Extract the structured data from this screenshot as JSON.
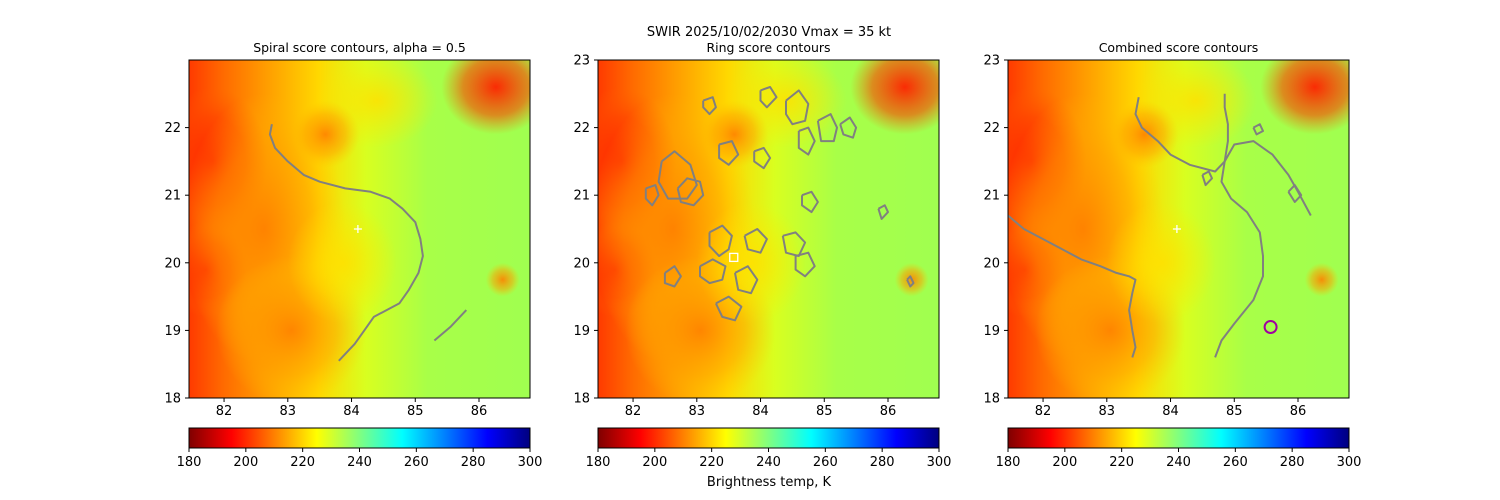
{
  "figure": {
    "suptitle_line": "SWIR  2025/10/02/2030    Vmax = 35 kt",
    "colorbar_label": "Brightness temp, K"
  },
  "colorbar": {
    "range": [
      180,
      300
    ],
    "ticks": [
      180,
      200,
      220,
      240,
      260,
      280,
      300
    ],
    "colormap": "jet_r",
    "stops": [
      "#7f0000",
      "#ff0000",
      "#ff8000",
      "#ffff00",
      "#80ff80",
      "#00ffff",
      "#0080ff",
      "#0000ff",
      "#00007f"
    ]
  },
  "contour_color": "#808080",
  "chart_data": [
    {
      "type": "heatmap",
      "title": "Spiral score contours, alpha =  0.5",
      "xlim": [
        81.45,
        86.8
      ],
      "ylim": [
        18.0,
        23.0
      ],
      "xticks": [
        82,
        83,
        84,
        85,
        86
      ],
      "yticks": [
        18,
        19,
        20,
        21,
        22
      ],
      "grid": false,
      "center_marker": {
        "symbol": "+",
        "color": "#ffffff",
        "x": 84.1,
        "y": 20.5
      },
      "contours": [
        [
          [
            82.75,
            22.05
          ],
          [
            82.72,
            21.9
          ],
          [
            82.8,
            21.7
          ],
          [
            83.0,
            21.5
          ],
          [
            83.25,
            21.3
          ],
          [
            83.5,
            21.2
          ],
          [
            83.9,
            21.1
          ],
          [
            84.3,
            21.05
          ],
          [
            84.6,
            20.95
          ],
          [
            84.8,
            20.8
          ],
          [
            85.0,
            20.6
          ],
          [
            85.08,
            20.35
          ],
          [
            85.12,
            20.1
          ],
          [
            85.05,
            19.85
          ],
          [
            84.9,
            19.6
          ],
          [
            84.75,
            19.4
          ],
          [
            84.55,
            19.3
          ],
          [
            84.35,
            19.2
          ],
          [
            84.2,
            19.0
          ],
          [
            84.05,
            18.8
          ],
          [
            83.95,
            18.7
          ],
          [
            83.8,
            18.55
          ]
        ],
        [
          [
            85.3,
            18.85
          ],
          [
            85.55,
            19.05
          ],
          [
            85.8,
            19.3
          ]
        ]
      ]
    },
    {
      "type": "heatmap",
      "title": "Ring score contours",
      "xlim": [
        81.45,
        86.8
      ],
      "ylim": [
        18.0,
        23.0
      ],
      "xticks": [
        82,
        83,
        84,
        85,
        86
      ],
      "yticks": [
        18,
        19,
        20,
        21,
        22,
        23
      ],
      "grid": false,
      "center_marker": {
        "symbol": "square",
        "color": "#ffffff",
        "x": 83.58,
        "y": 20.08
      },
      "contours": [
        [
          [
            82.45,
            21.5
          ],
          [
            82.65,
            21.65
          ],
          [
            82.9,
            21.45
          ],
          [
            83.0,
            21.15
          ],
          [
            82.85,
            20.95
          ],
          [
            82.55,
            20.95
          ],
          [
            82.4,
            21.2
          ],
          [
            82.45,
            21.5
          ]
        ],
        [
          [
            82.7,
            21.1
          ],
          [
            82.85,
            21.25
          ],
          [
            83.05,
            21.2
          ],
          [
            83.1,
            21.0
          ],
          [
            82.95,
            20.85
          ],
          [
            82.75,
            20.9
          ],
          [
            82.7,
            21.1
          ]
        ],
        [
          [
            83.2,
            20.45
          ],
          [
            83.4,
            20.55
          ],
          [
            83.55,
            20.4
          ],
          [
            83.5,
            20.2
          ],
          [
            83.35,
            20.1
          ],
          [
            83.2,
            20.25
          ],
          [
            83.2,
            20.45
          ]
        ],
        [
          [
            83.05,
            19.95
          ],
          [
            83.25,
            20.05
          ],
          [
            83.45,
            19.95
          ],
          [
            83.4,
            19.75
          ],
          [
            83.2,
            19.7
          ],
          [
            83.05,
            19.8
          ],
          [
            83.05,
            19.95
          ]
        ],
        [
          [
            83.6,
            19.85
          ],
          [
            83.8,
            19.95
          ],
          [
            83.95,
            19.75
          ],
          [
            83.85,
            19.55
          ],
          [
            83.65,
            19.6
          ],
          [
            83.6,
            19.85
          ]
        ],
        [
          [
            83.75,
            20.4
          ],
          [
            83.95,
            20.5
          ],
          [
            84.1,
            20.35
          ],
          [
            84.0,
            20.15
          ],
          [
            83.8,
            20.2
          ],
          [
            83.75,
            20.4
          ]
        ],
        [
          [
            84.35,
            20.4
          ],
          [
            84.55,
            20.45
          ],
          [
            84.7,
            20.3
          ],
          [
            84.6,
            20.1
          ],
          [
            84.4,
            20.15
          ],
          [
            84.35,
            20.4
          ]
        ],
        [
          [
            84.55,
            20.1
          ],
          [
            84.75,
            20.15
          ],
          [
            84.85,
            19.95
          ],
          [
            84.7,
            19.8
          ],
          [
            84.55,
            19.9
          ],
          [
            84.55,
            20.1
          ]
        ],
        [
          [
            83.35,
            21.75
          ],
          [
            83.55,
            21.8
          ],
          [
            83.65,
            21.6
          ],
          [
            83.5,
            21.45
          ],
          [
            83.35,
            21.55
          ],
          [
            83.35,
            21.75
          ]
        ],
        [
          [
            83.9,
            21.65
          ],
          [
            84.05,
            21.7
          ],
          [
            84.15,
            21.55
          ],
          [
            84.05,
            21.4
          ],
          [
            83.9,
            21.5
          ],
          [
            83.9,
            21.65
          ]
        ],
        [
          [
            84.4,
            22.4
          ],
          [
            84.6,
            22.55
          ],
          [
            84.75,
            22.35
          ],
          [
            84.7,
            22.1
          ],
          [
            84.5,
            22.05
          ],
          [
            84.4,
            22.2
          ],
          [
            84.4,
            22.4
          ]
        ],
        [
          [
            84.6,
            21.95
          ],
          [
            84.75,
            22.0
          ],
          [
            84.85,
            21.8
          ],
          [
            84.75,
            21.6
          ],
          [
            84.6,
            21.7
          ],
          [
            84.6,
            21.95
          ]
        ],
        [
          [
            84.9,
            22.1
          ],
          [
            85.1,
            22.2
          ],
          [
            85.2,
            22.0
          ],
          [
            85.15,
            21.8
          ],
          [
            84.95,
            21.8
          ],
          [
            84.9,
            22.1
          ]
        ],
        [
          [
            85.25,
            22.05
          ],
          [
            85.4,
            22.15
          ],
          [
            85.5,
            22.0
          ],
          [
            85.45,
            21.85
          ],
          [
            85.3,
            21.9
          ],
          [
            85.25,
            22.05
          ]
        ],
        [
          [
            84.0,
            22.55
          ],
          [
            84.15,
            22.6
          ],
          [
            84.25,
            22.45
          ],
          [
            84.1,
            22.3
          ],
          [
            84.0,
            22.4
          ],
          [
            84.0,
            22.55
          ]
        ],
        [
          [
            84.65,
            21.0
          ],
          [
            84.8,
            21.05
          ],
          [
            84.9,
            20.9
          ],
          [
            84.8,
            20.75
          ],
          [
            84.65,
            20.85
          ],
          [
            84.65,
            21.0
          ]
        ],
        [
          [
            83.3,
            19.4
          ],
          [
            83.5,
            19.5
          ],
          [
            83.7,
            19.35
          ],
          [
            83.6,
            19.15
          ],
          [
            83.4,
            19.2
          ],
          [
            83.3,
            19.4
          ]
        ],
        [
          [
            82.5,
            19.85
          ],
          [
            82.65,
            19.95
          ],
          [
            82.75,
            19.8
          ],
          [
            82.65,
            19.65
          ],
          [
            82.5,
            19.7
          ],
          [
            82.5,
            19.85
          ]
        ],
        [
          [
            82.2,
            21.1
          ],
          [
            82.35,
            21.15
          ],
          [
            82.4,
            21.0
          ],
          [
            82.3,
            20.85
          ],
          [
            82.2,
            20.95
          ],
          [
            82.2,
            21.1
          ]
        ],
        [
          [
            83.1,
            22.4
          ],
          [
            83.25,
            22.45
          ],
          [
            83.3,
            22.3
          ],
          [
            83.2,
            22.2
          ],
          [
            83.1,
            22.3
          ],
          [
            83.1,
            22.4
          ]
        ],
        [
          [
            85.85,
            20.8
          ],
          [
            85.95,
            20.85
          ],
          [
            86.0,
            20.75
          ],
          [
            85.9,
            20.65
          ],
          [
            85.85,
            20.8
          ]
        ],
        [
          [
            86.3,
            19.75
          ],
          [
            86.35,
            19.8
          ],
          [
            86.4,
            19.7
          ],
          [
            86.35,
            19.65
          ],
          [
            86.3,
            19.75
          ]
        ]
      ]
    },
    {
      "type": "heatmap",
      "title": "Combined score contours",
      "xlim": [
        81.45,
        86.8
      ],
      "ylim": [
        18.0,
        23.0
      ],
      "xticks": [
        82,
        83,
        84,
        85,
        86
      ],
      "yticks": [
        18,
        19,
        20,
        21,
        22,
        23
      ],
      "grid": false,
      "center_marker": {
        "symbol": "+",
        "color": "#ffffff",
        "x": 84.1,
        "y": 20.5
      },
      "target_marker": {
        "symbol": "circle",
        "color": "#a000a0",
        "x": 85.57,
        "y": 19.05
      },
      "contours": [
        [
          [
            81.45,
            20.7
          ],
          [
            81.7,
            20.5
          ],
          [
            82.0,
            20.35
          ],
          [
            82.3,
            20.2
          ],
          [
            82.6,
            20.05
          ],
          [
            82.9,
            19.95
          ],
          [
            83.15,
            19.85
          ],
          [
            83.35,
            19.8
          ],
          [
            83.45,
            19.75
          ],
          [
            83.4,
            19.55
          ],
          [
            83.35,
            19.3
          ],
          [
            83.4,
            19.0
          ],
          [
            83.45,
            18.75
          ],
          [
            83.4,
            18.6
          ]
        ],
        [
          [
            83.5,
            22.45
          ],
          [
            83.45,
            22.2
          ],
          [
            83.55,
            22.0
          ],
          [
            83.8,
            21.8
          ],
          [
            84.0,
            21.6
          ],
          [
            84.3,
            21.45
          ],
          [
            84.7,
            21.35
          ],
          [
            84.85,
            21.5
          ],
          [
            84.9,
            21.8
          ],
          [
            84.9,
            22.05
          ],
          [
            84.85,
            22.3
          ],
          [
            84.85,
            22.5
          ]
        ],
        [
          [
            84.7,
            18.6
          ],
          [
            84.8,
            18.85
          ],
          [
            85.0,
            19.1
          ],
          [
            85.3,
            19.45
          ],
          [
            85.45,
            19.8
          ],
          [
            85.45,
            20.1
          ],
          [
            85.4,
            20.45
          ],
          [
            85.2,
            20.75
          ],
          [
            84.95,
            20.95
          ],
          [
            84.8,
            21.2
          ],
          [
            84.85,
            21.5
          ],
          [
            85.0,
            21.75
          ],
          [
            85.3,
            21.8
          ],
          [
            85.6,
            21.6
          ],
          [
            85.85,
            21.3
          ],
          [
            86.0,
            21.05
          ],
          [
            86.2,
            20.7
          ]
        ],
        [
          [
            85.85,
            21.05
          ],
          [
            85.95,
            21.15
          ],
          [
            86.05,
            21.0
          ],
          [
            85.95,
            20.9
          ],
          [
            85.85,
            21.05
          ]
        ],
        [
          [
            84.5,
            21.3
          ],
          [
            84.6,
            21.35
          ],
          [
            84.65,
            21.25
          ],
          [
            84.55,
            21.15
          ],
          [
            84.5,
            21.3
          ]
        ],
        [
          [
            85.3,
            22.0
          ],
          [
            85.4,
            22.05
          ],
          [
            85.45,
            21.95
          ],
          [
            85.35,
            21.9
          ],
          [
            85.3,
            22.0
          ]
        ]
      ]
    }
  ]
}
